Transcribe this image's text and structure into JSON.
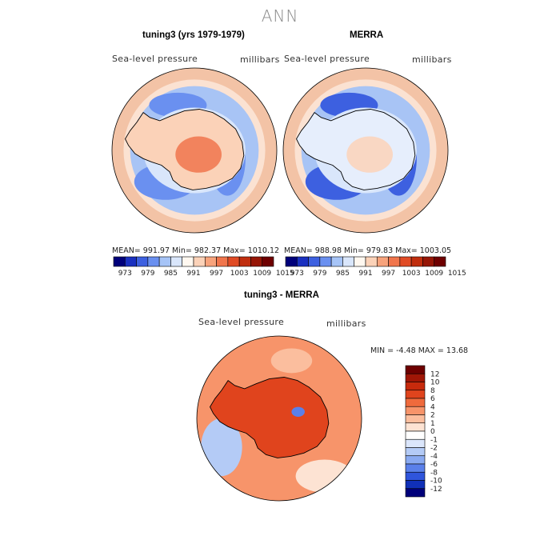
{
  "figure": {
    "title": "ANN"
  },
  "chart_data": [
    {
      "type": "heatmap",
      "projection": "south-polar-stereographic",
      "title": "tuning3 (yrs 1979-1979)",
      "variable": "Sea-level pressure",
      "units": "millibars",
      "stats": {
        "mean": "991.97",
        "min": "982.37",
        "max": "1010.12"
      },
      "stats_text": "MEAN= 991.97   Min= 982.37   Max= 1010.12",
      "colorbar": {
        "levels": [
          "973",
          "979",
          "985",
          "991",
          "997",
          "1003",
          "1009",
          "1015"
        ],
        "colors": [
          "#00007a",
          "#1a30c0",
          "#3d60e0",
          "#6a90f0",
          "#a6c4f7",
          "#d9e6fb",
          "#fff8f0",
          "#fbd2b8",
          "#f7a37c",
          "#f0754c",
          "#e04b25",
          "#c02e0e",
          "#961606",
          "#6e0000"
        ]
      },
      "fields": {
        "ocean_ring_outer": "#f3c3a6",
        "ocean_mid": "#a8c4f5",
        "ocean_low": "#6a90f0",
        "continent": "#fbd2b8",
        "continent_high": "#f0754c"
      }
    },
    {
      "type": "heatmap",
      "projection": "south-polar-stereographic",
      "title": "MERRA",
      "variable": "Sea-level pressure",
      "units": "millibars",
      "stats": {
        "mean": "988.98",
        "min": "979.83",
        "max": "1003.05"
      },
      "stats_text": "MEAN= 988.98   Min= 979.83   Max= 1003.05",
      "colorbar": {
        "levels": [
          "973",
          "979",
          "985",
          "991",
          "997",
          "1003",
          "1009",
          "1015"
        ],
        "colors": [
          "#00007a",
          "#1a30c0",
          "#3d60e0",
          "#6a90f0",
          "#a6c4f7",
          "#d9e6fb",
          "#fff8f0",
          "#fbd2b8",
          "#f7a37c",
          "#f0754c",
          "#e04b25",
          "#c02e0e",
          "#961606",
          "#6e0000"
        ]
      },
      "fields": {
        "ocean_ring_outer": "#f3c3a6",
        "ocean_mid": "#a8c4f5",
        "ocean_low": "#3d60e0",
        "continent": "#e6eefc",
        "continent_high": "#fbd2b8"
      }
    },
    {
      "type": "heatmap",
      "projection": "south-polar-stereographic",
      "title": "tuning3 - MERRA",
      "variable": "Sea-level pressure",
      "units": "millibars",
      "stats": {
        "min": "-4.48",
        "max": "13.68"
      },
      "stats_text": "MIN =   -4.48  MAX =   13.68",
      "colorbar": {
        "levels": [
          "12",
          "10",
          "8",
          "6",
          "4",
          "2",
          "1",
          "0",
          "-1",
          "-2",
          "-4",
          "-6",
          "-8",
          "-10",
          "-12"
        ],
        "colors": [
          "#6e0000",
          "#a01606",
          "#c72a0c",
          "#e0441d",
          "#ef6a3c",
          "#f7946a",
          "#fbbe9e",
          "#fde3d3",
          "#ffffff",
          "#dbe6fb",
          "#b4cbf6",
          "#8aaaf1",
          "#5a80ea",
          "#2f55dc",
          "#1030b8",
          "#00007a"
        ]
      },
      "fields": {
        "ocean": "#f7946a",
        "ocean_light": "#fbbe9e",
        "ocean_pale": "#fde3d3",
        "continent": "#e0441d",
        "blue_spot": "#5a80ea"
      }
    }
  ]
}
